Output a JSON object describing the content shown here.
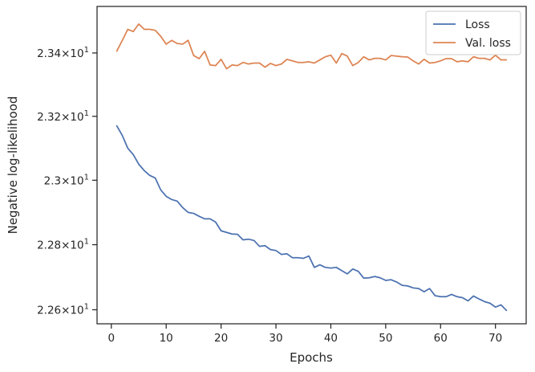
{
  "chart_data": {
    "type": "line",
    "xlabel": "Epochs",
    "ylabel": "Negative log-likelihood",
    "x_ticks": [
      0,
      10,
      20,
      30,
      40,
      50,
      60,
      70
    ],
    "y_ticks": [
      {
        "value": 22.6,
        "mantissa": "2.26",
        "exponent": "1"
      },
      {
        "value": 22.8,
        "mantissa": "2.28",
        "exponent": "1"
      },
      {
        "value": 23.0,
        "mantissa": "2.3",
        "exponent": "1"
      },
      {
        "value": 23.2,
        "mantissa": "2.32",
        "exponent": "1"
      },
      {
        "value": 23.4,
        "mantissa": "2.34",
        "exponent": "1"
      }
    ],
    "xlim": [
      -2.6,
      75.6
    ],
    "ylim": [
      22.557,
      23.548
    ],
    "y_scale": "log",
    "grid": false,
    "legend_position": "top-right",
    "x": [
      1,
      2,
      3,
      4,
      5,
      6,
      7,
      8,
      9,
      10,
      11,
      12,
      13,
      14,
      15,
      16,
      17,
      18,
      19,
      20,
      21,
      22,
      23,
      24,
      25,
      26,
      27,
      28,
      29,
      30,
      31,
      32,
      33,
      34,
      35,
      36,
      37,
      38,
      39,
      40,
      41,
      42,
      43,
      44,
      45,
      46,
      47,
      48,
      49,
      50,
      51,
      52,
      53,
      54,
      55,
      56,
      57,
      58,
      59,
      60,
      61,
      62,
      63,
      64,
      65,
      66,
      67,
      68,
      69,
      70,
      71,
      72
    ],
    "series": [
      {
        "name": "Loss",
        "color": "#4c72b0",
        "values": [
          23.17,
          23.14,
          23.1,
          23.08,
          23.05,
          23.03,
          23.015,
          23.007,
          22.97,
          22.95,
          22.94,
          22.935,
          22.915,
          22.9,
          22.897,
          22.888,
          22.88,
          22.88,
          22.87,
          22.843,
          22.838,
          22.833,
          22.832,
          22.815,
          22.817,
          22.813,
          22.795,
          22.797,
          22.785,
          22.782,
          22.77,
          22.772,
          22.76,
          22.76,
          22.758,
          22.765,
          22.73,
          22.738,
          22.73,
          22.728,
          22.73,
          22.72,
          22.71,
          22.725,
          22.718,
          22.697,
          22.698,
          22.702,
          22.698,
          22.69,
          22.692,
          22.685,
          22.675,
          22.673,
          22.667,
          22.665,
          22.655,
          22.665,
          22.643,
          22.64,
          22.64,
          22.647,
          22.64,
          22.637,
          22.627,
          22.642,
          22.633,
          22.625,
          22.62,
          22.608,
          22.615,
          22.598
        ]
      },
      {
        "name": "Val. loss",
        "color": "#dd8452",
        "values": [
          23.406,
          23.44,
          23.475,
          23.468,
          23.492,
          23.475,
          23.475,
          23.472,
          23.453,
          23.428,
          23.44,
          23.43,
          23.428,
          23.44,
          23.392,
          23.382,
          23.405,
          23.362,
          23.36,
          23.38,
          23.35,
          23.362,
          23.36,
          23.37,
          23.365,
          23.368,
          23.368,
          23.355,
          23.367,
          23.36,
          23.365,
          23.38,
          23.375,
          23.37,
          23.37,
          23.372,
          23.368,
          23.378,
          23.388,
          23.393,
          23.368,
          23.398,
          23.39,
          23.36,
          23.37,
          23.388,
          23.378,
          23.383,
          23.383,
          23.378,
          23.392,
          23.39,
          23.388,
          23.387,
          23.375,
          23.365,
          23.38,
          23.368,
          23.37,
          23.375,
          23.382,
          23.382,
          23.372,
          23.375,
          23.372,
          23.388,
          23.383,
          23.383,
          23.378,
          23.393,
          23.378,
          23.378
        ]
      }
    ]
  }
}
